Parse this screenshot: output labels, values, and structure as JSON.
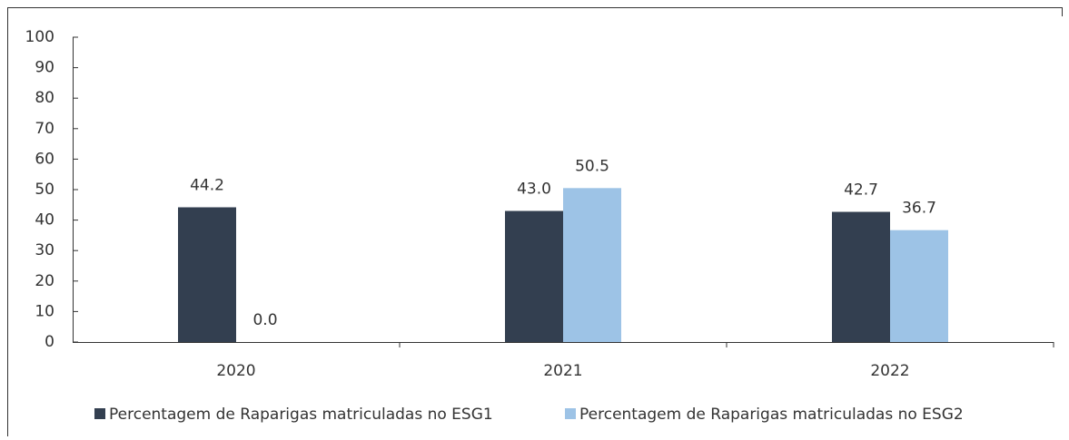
{
  "chart_data": {
    "type": "bar",
    "categories": [
      "2020",
      "2021",
      "2022"
    ],
    "series": [
      {
        "name": "Percentagem de Raparigas matriculadas no ESG1",
        "color": "#333f50",
        "values": [
          44.2,
          43.0,
          42.7
        ],
        "value_labels": [
          "44.2",
          "43.0",
          "42.7"
        ]
      },
      {
        "name": "Percentagem de Raparigas matriculadas no ESG2",
        "color": "#9dc3e6",
        "values": [
          0.0,
          50.5,
          36.7
        ],
        "value_labels": [
          "0.0",
          "50.5",
          "36.7"
        ]
      }
    ],
    "ylim": [
      0,
      100
    ],
    "yticks": [
      0,
      10,
      20,
      30,
      40,
      50,
      60,
      70,
      80,
      90,
      100
    ],
    "grid": false,
    "legend": "bottom"
  }
}
